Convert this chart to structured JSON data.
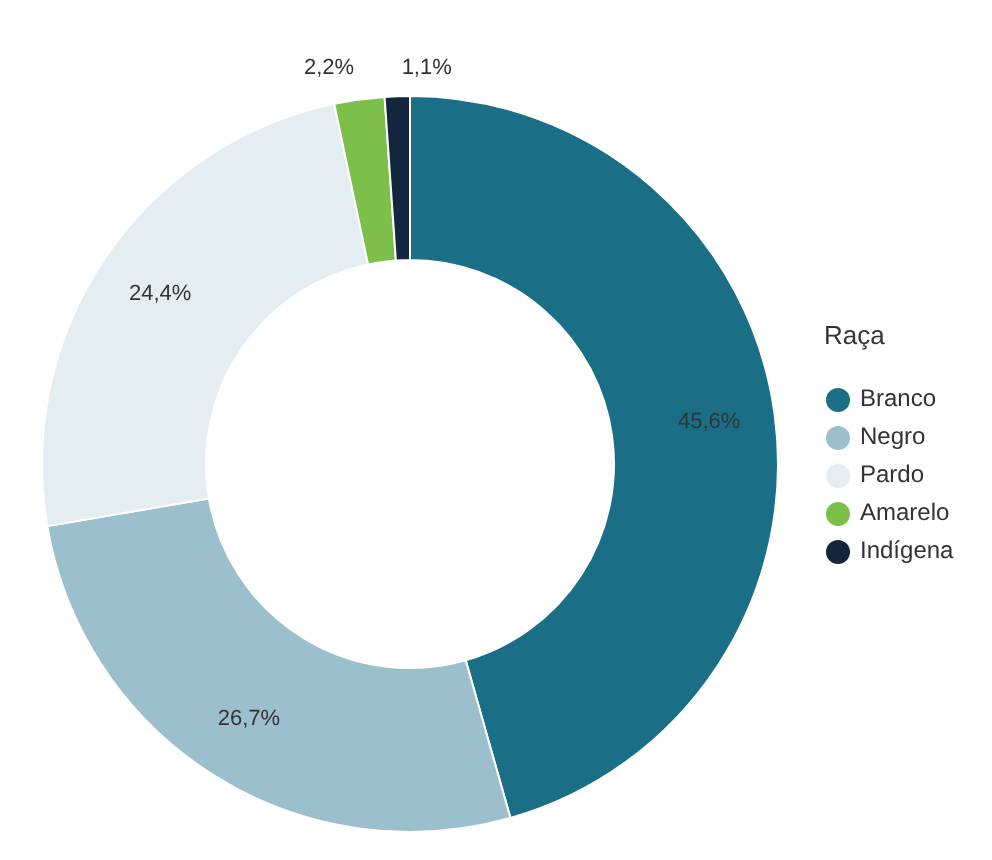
{
  "chart_data": {
    "type": "donut",
    "legend_title": "Raça",
    "legend": "right",
    "categories": [
      "Branco",
      "Negro",
      "Pardo",
      "Amarelo",
      "Indígena"
    ],
    "values": [
      45.6,
      26.7,
      24.4,
      2.2,
      1.1
    ],
    "colors": [
      "#1a6e85",
      "#9bbfcc",
      "#e4edf2",
      "#7cc04a",
      "#14263d"
    ],
    "value_labels": [
      "45,6%",
      "26,7%",
      "24,4%",
      "2,2%",
      "1,1%"
    ]
  }
}
